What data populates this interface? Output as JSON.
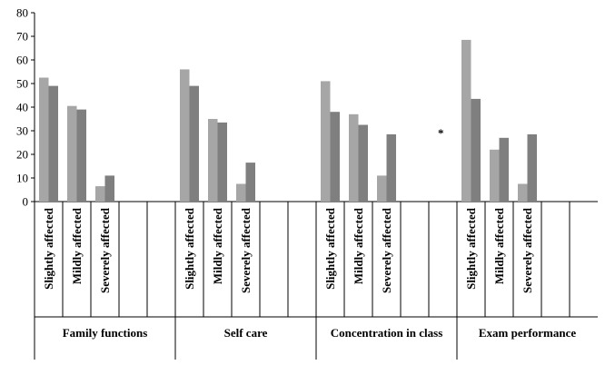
{
  "chart_data": {
    "type": "bar",
    "ylim": [
      0,
      80
    ],
    "yticks": [
      0,
      10,
      20,
      30,
      40,
      50,
      60,
      70,
      80
    ],
    "grid": false,
    "legend": "none",
    "colors": [
      "#a6a6a6",
      "#7f7f7f"
    ],
    "annotation": "*",
    "groups": [
      {
        "label": "Family functions",
        "categories": [
          "Slightly affected",
          "Mildly affected",
          "Severely affected"
        ],
        "series": [
          [
            52.5,
            40.5,
            6.5
          ],
          [
            49,
            39,
            11
          ]
        ]
      },
      {
        "label": "Self care",
        "categories": [
          "Slightly affected",
          "Mildly affected",
          "Severely affected"
        ],
        "series": [
          [
            56,
            35,
            7.5
          ],
          [
            49,
            33.5,
            16.5
          ]
        ]
      },
      {
        "label": "Concentration in class",
        "categories": [
          "Slightly affected",
          "Mildly affected",
          "Severely affected"
        ],
        "series": [
          [
            51,
            37,
            11
          ],
          [
            38,
            32.5,
            28.5
          ]
        ]
      },
      {
        "label": "Exam performance",
        "categories": [
          "Slightly affected",
          "Mildly affected",
          "Severely affected"
        ],
        "series": [
          [
            68.5,
            22,
            7.5
          ],
          [
            43.5,
            27,
            28.5
          ]
        ]
      }
    ]
  }
}
